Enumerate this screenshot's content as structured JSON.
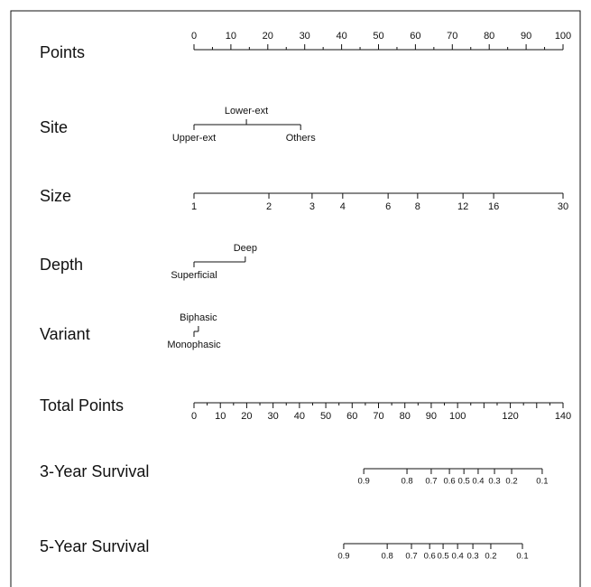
{
  "chart_data": {
    "type": "nomogram",
    "points_xlim": [
      0,
      100
    ],
    "total_xlim": [
      0,
      140
    ],
    "rows": [
      {
        "label": "Points",
        "axis": "points",
        "tick_labels": "above",
        "ticks": [
          0,
          10,
          20,
          30,
          40,
          50,
          60,
          70,
          80,
          90,
          100
        ],
        "minor_ticks": [
          5,
          15,
          25,
          35,
          45,
          55,
          65,
          75,
          85,
          95
        ]
      },
      {
        "label": "Site",
        "axis": "points",
        "tick_labels": "alternate",
        "ticks": [
          {
            "value": 0,
            "label": "Upper-ext"
          },
          {
            "value": 14.2,
            "label": "Lower-ext"
          },
          {
            "value": 28.9,
            "label": "Others"
          }
        ]
      },
      {
        "label": "Size",
        "axis": "points",
        "tick_labels": "below",
        "ticks": [
          {
            "value": 0,
            "label": "1"
          },
          {
            "value": 20.3,
            "label": "2"
          },
          {
            "value": 32.0,
            "label": "3"
          },
          {
            "value": 40.3,
            "label": "4"
          },
          {
            "value": 52.6,
            "label": "6"
          },
          {
            "value": 60.6,
            "label": "8"
          },
          {
            "value": 72.9,
            "label": "12"
          },
          {
            "value": 81.2,
            "label": "16"
          },
          {
            "value": 100,
            "label": "30"
          }
        ]
      },
      {
        "label": "Depth",
        "axis": "points",
        "tick_labels": "alternate",
        "ticks": [
          {
            "value": 0,
            "label": "Superficial"
          },
          {
            "value": 13.9,
            "label": "Deep"
          }
        ]
      },
      {
        "label": "Variant",
        "axis": "points",
        "tick_labels": "alternate",
        "ticks": [
          {
            "value": 0,
            "label": "Monophasic"
          },
          {
            "value": 1.2,
            "label": "Biphasic"
          }
        ]
      },
      {
        "label": "Total Points",
        "axis": "total",
        "tick_labels": "below",
        "ticks": [
          0,
          10,
          20,
          30,
          40,
          50,
          60,
          70,
          80,
          90,
          100,
          {
            "value": 110,
            "label": null
          },
          120,
          {
            "value": 130,
            "label": null
          },
          140
        ],
        "minor_ticks": [
          5,
          15,
          25,
          35,
          45,
          55,
          65,
          75,
          85,
          95,
          105,
          115,
          125,
          135
        ]
      },
      {
        "label": "3-Year Survival",
        "axis": "total",
        "tick_labels": "below",
        "small": true,
        "ticks": [
          {
            "value": 64.4,
            "label": "0.9"
          },
          {
            "value": 80.8,
            "label": "0.8"
          },
          {
            "value": 90.0,
            "label": "0.7"
          },
          {
            "value": 96.9,
            "label": "0.6"
          },
          {
            "value": 102.4,
            "label": "0.5"
          },
          {
            "value": 107.8,
            "label": "0.4"
          },
          {
            "value": 114.0,
            "label": "0.3"
          },
          {
            "value": 120.5,
            "label": "0.2"
          },
          {
            "value": 132.1,
            "label": "0.1"
          }
        ]
      },
      {
        "label": "5-Year Survival",
        "axis": "total",
        "tick_labels": "below",
        "small": true,
        "ticks": [
          {
            "value": 56.8,
            "label": "0.9"
          },
          {
            "value": 73.3,
            "label": "0.8"
          },
          {
            "value": 82.5,
            "label": "0.7"
          },
          {
            "value": 89.4,
            "label": "0.6"
          },
          {
            "value": 94.5,
            "label": "0.5"
          },
          {
            "value": 100.0,
            "label": "0.4"
          },
          {
            "value": 105.8,
            "label": "0.3"
          },
          {
            "value": 112.6,
            "label": "0.2"
          },
          {
            "value": 124.6,
            "label": "0.1"
          }
        ]
      }
    ]
  }
}
